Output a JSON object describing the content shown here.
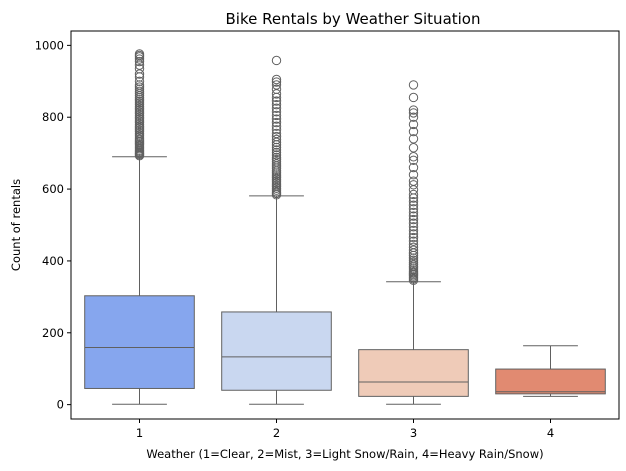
{
  "chart_data": {
    "type": "box",
    "title": "Bike Rentals by Weather Situation",
    "xlabel": "Weather (1=Clear, 2=Mist, 3=Light Snow/Rain, 4=Heavy Rain/Snow)",
    "ylabel": "Count of rentals",
    "categories": [
      "1",
      "2",
      "3",
      "4"
    ],
    "ylim": [
      -40,
      1040
    ],
    "yticks": [
      0,
      200,
      400,
      600,
      800,
      1000
    ],
    "grid": false,
    "colors": [
      "#86a6ee",
      "#c9d7f0",
      "#efcbb8",
      "#e18a71"
    ],
    "line_color": "#606060",
    "boxes": [
      {
        "category": "1",
        "whisker_low": 1,
        "q1": 45,
        "median": 159,
        "q3": 303,
        "whisker_high": 690,
        "outliers": [
          693,
          696,
          699,
          702,
          705,
          708,
          712,
          716,
          720,
          724,
          728,
          732,
          736,
          740,
          745,
          750,
          755,
          760,
          765,
          770,
          775,
          780,
          785,
          790,
          795,
          800,
          805,
          810,
          815,
          820,
          825,
          830,
          835,
          840,
          845,
          850,
          855,
          860,
          866,
          872,
          878,
          884,
          890,
          900,
          912,
          920,
          935,
          945,
          955,
          962,
          968,
          972,
          976
        ]
      },
      {
        "category": "2",
        "whisker_low": 1,
        "q1": 40,
        "median": 133,
        "q3": 258,
        "whisker_high": 581,
        "outliers": [
          584,
          588,
          592,
          597,
          602,
          607,
          612,
          617,
          622,
          627,
          632,
          637,
          642,
          647,
          652,
          658,
          664,
          670,
          676,
          682,
          688,
          695,
          702,
          709,
          716,
          723,
          730,
          738,
          746,
          755,
          765,
          775,
          785,
          795,
          805,
          815,
          825,
          835,
          845,
          855,
          865,
          878,
          890,
          898,
          905,
          958
        ]
      },
      {
        "category": "3",
        "whisker_low": 1,
        "q1": 23,
        "median": 63,
        "q3": 153,
        "whisker_high": 342,
        "outliers": [
          346,
          350,
          354,
          358,
          362,
          366,
          370,
          375,
          380,
          385,
          390,
          396,
          402,
          408,
          415,
          422,
          430,
          438,
          446,
          455,
          465,
          475,
          485,
          495,
          505,
          515,
          525,
          535,
          545,
          555,
          565,
          575,
          585,
          598,
          612,
          622,
          640,
          660,
          680,
          690,
          715,
          740,
          760,
          780,
          800,
          812,
          820,
          855,
          890
        ]
      },
      {
        "category": "4",
        "whisker_low": 23,
        "q1": 30,
        "median": 36,
        "q3": 99,
        "whisker_high": 164,
        "outliers": []
      }
    ]
  }
}
